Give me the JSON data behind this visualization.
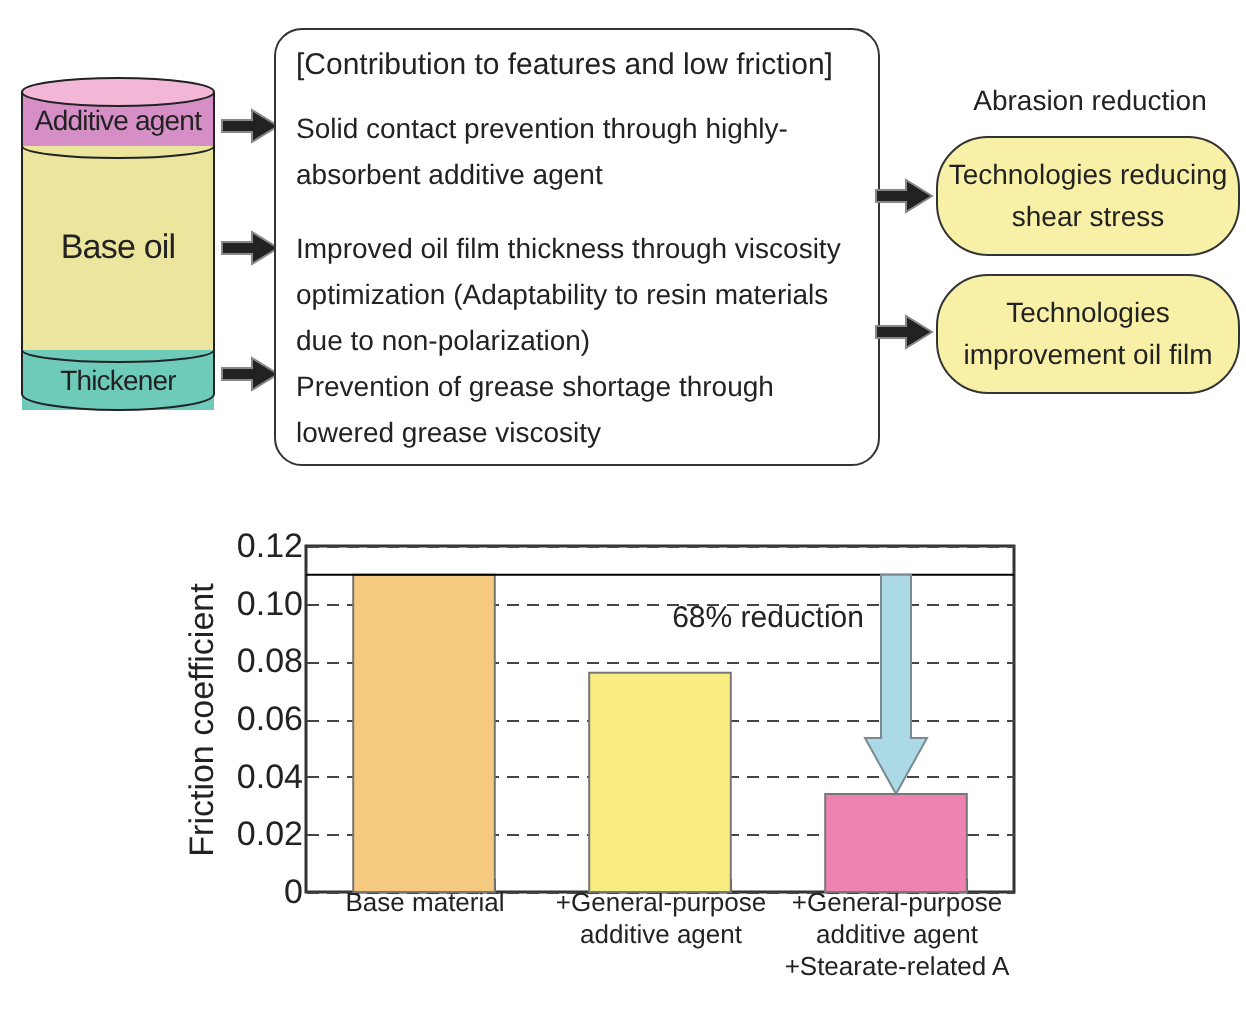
{
  "chart_data": [
    {
      "type": "other",
      "title": "[Contribution to features and low friction]",
      "annotations": [
        "Additive agent",
        "Base oil",
        "Thickener",
        "Solid contact prevention through highly-absorbent additive agent",
        "Improved oil film thickness through viscosity optimization (Adaptability to resin materials due to non-polarization)",
        "Prevention of grease shortage through lowered grease viscosity",
        "Abrasion reduction",
        "Technologies reducing shear stress",
        "Technologies improvement oil film"
      ]
    },
    {
      "type": "bar",
      "ylabel": "Friction coefficient",
      "categories": [
        "Base material",
        "+General-purpose\nadditive agent",
        "+General-purpose\nadditive agent\n+Stearate-related A"
      ],
      "values": [
        0.11,
        0.076,
        0.034
      ],
      "colors": [
        "#f5c97f",
        "#f8ec80",
        "#ee82b0"
      ],
      "ylim": [
        0,
        0.12
      ],
      "yticks": [
        0,
        0.02,
        0.04,
        0.06,
        0.08,
        {
          "value": 0.1,
          "label": "0.10"
        },
        {
          "value": 0.12,
          "label": "0.12"
        }
      ],
      "grid": "y",
      "ref_lines": [
        {
          "axis": "y",
          "value": 0.11,
          "color": "#000000"
        }
      ],
      "annotations": [
        "68% reduction"
      ]
    }
  ]
}
